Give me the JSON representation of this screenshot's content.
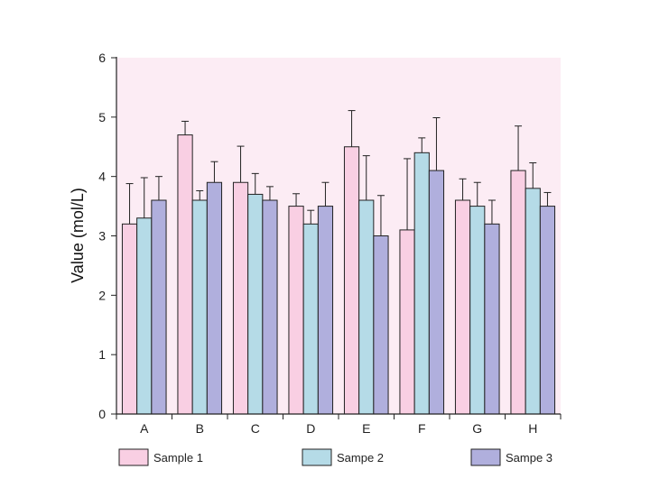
{
  "chart_data": {
    "type": "bar",
    "title": "",
    "xlabel": "",
    "ylabel": "Value (mol/L)",
    "ylim": [
      0,
      6
    ],
    "yticks": [
      0,
      1,
      2,
      3,
      4,
      5,
      6
    ],
    "categories": [
      "A",
      "B",
      "C",
      "D",
      "E",
      "F",
      "G",
      "H"
    ],
    "series": [
      {
        "name": "Sample 1",
        "color": "#f9cfe3",
        "values": [
          3.2,
          4.7,
          3.9,
          3.5,
          4.5,
          3.1,
          3.6,
          4.1
        ],
        "errors": [
          0.68,
          0.23,
          0.61,
          0.21,
          0.61,
          1.2,
          0.36,
          0.75
        ]
      },
      {
        "name": "Sampe 2",
        "color": "#b5dbe7",
        "values": [
          3.3,
          3.6,
          3.7,
          3.2,
          3.6,
          4.4,
          3.5,
          3.8
        ],
        "errors": [
          0.68,
          0.16,
          0.35,
          0.23,
          0.75,
          0.25,
          0.4,
          0.43
        ]
      },
      {
        "name": "Sampe 3",
        "color": "#b0afdd",
        "values": [
          3.6,
          3.9,
          3.6,
          3.5,
          3.0,
          4.1,
          3.2,
          3.5
        ],
        "errors": [
          0.4,
          0.35,
          0.23,
          0.4,
          0.68,
          0.89,
          0.4,
          0.23
        ]
      }
    ],
    "plot_background": "#fcecf4",
    "grid": false,
    "legend_position": "bottom"
  }
}
